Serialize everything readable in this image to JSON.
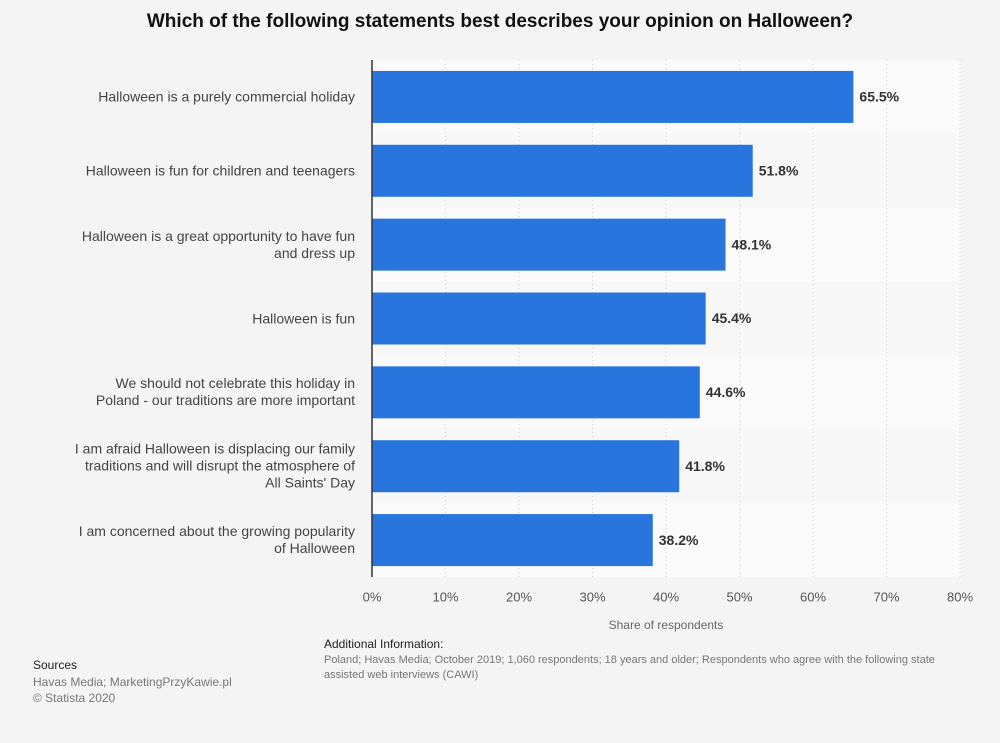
{
  "chart_data": {
    "type": "bar",
    "orientation": "horizontal",
    "title": "Which of the following statements best describes your opinion on Halloween?",
    "categories": [
      "Halloween is a purely commercial holiday",
      "Halloween is fun for children and teenagers",
      "Halloween is a great opportunity to have fun and dress up",
      "Halloween is fun",
      "We should not celebrate this holiday in Poland - our traditions are more important",
      "I am afraid Halloween is displacing our family traditions and will disrupt the atmosphere of All Saints' Day",
      "I am concerned about the growing popularity of Halloween"
    ],
    "values": [
      65.5,
      51.8,
      48.1,
      45.4,
      44.6,
      41.8,
      38.2
    ],
    "value_labels": [
      "65.5%",
      "51.8%",
      "48.1%",
      "45.4%",
      "44.6%",
      "41.8%",
      "38.2%"
    ],
    "color": "#2876dd",
    "xlabel": "Share of respondents",
    "xlim": [
      0,
      80
    ],
    "xticks": [
      {
        "value": 0,
        "label": "0%"
      },
      {
        "value": 10,
        "label": "10%"
      },
      {
        "value": 20,
        "label": "20%"
      },
      {
        "value": 30,
        "label": "30%"
      },
      {
        "value": 40,
        "label": "40%"
      },
      {
        "value": 50,
        "label": "50%"
      },
      {
        "value": 60,
        "label": "60%"
      },
      {
        "value": 70,
        "label": "70%"
      },
      {
        "value": 80,
        "label": "80%"
      }
    ],
    "grid": true
  },
  "additional_information": {
    "heading": "Additional Information:",
    "lines": [
      "Poland; Havas Media; October 2019; 1,060 respondents; 18 years and older; Respondents who agree with the following state",
      "assisted web interviews (CAWI)"
    ]
  },
  "sources": {
    "heading": "Sources",
    "lines": [
      "Havas Media; MarketingPrzyKawie.pl",
      "© Statista 2020"
    ]
  }
}
